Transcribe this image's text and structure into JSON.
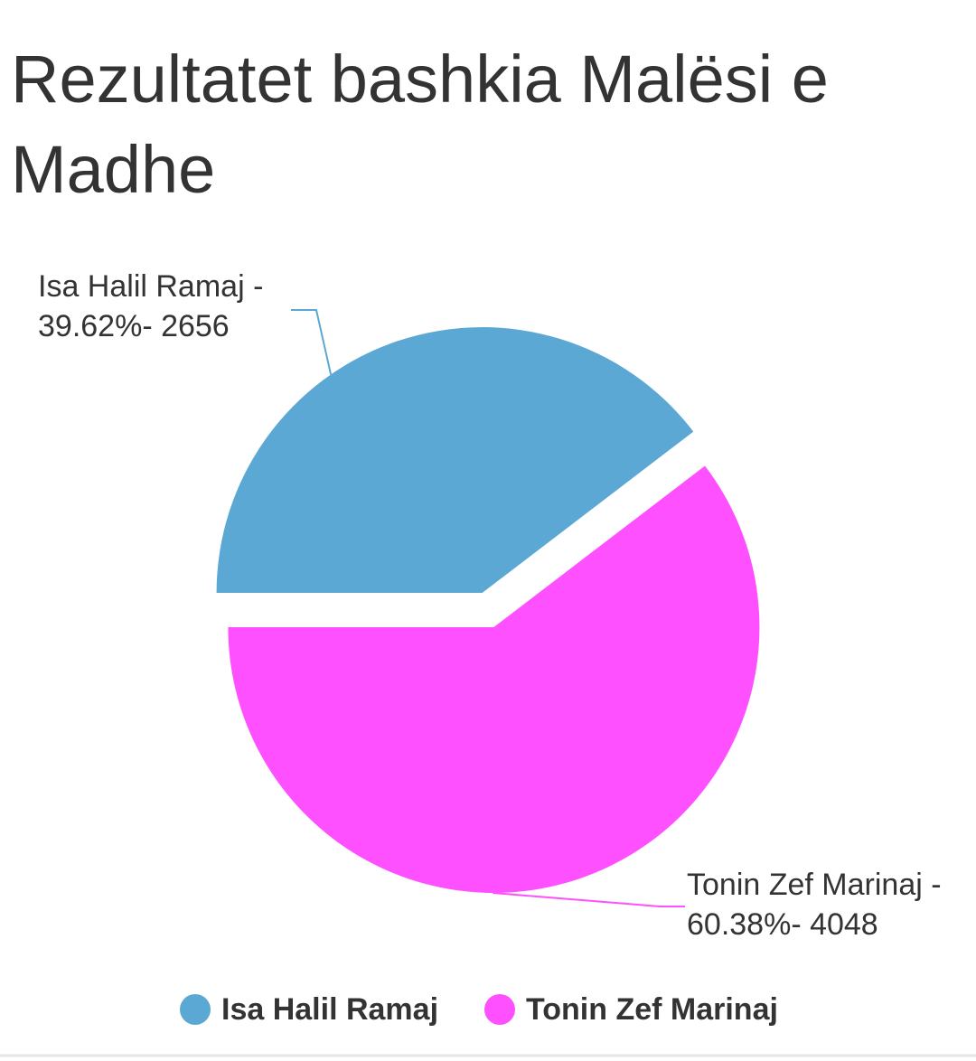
{
  "chart_data": {
    "type": "pie",
    "title": "Rezultatet bashkia Malësi e Madhe",
    "categories": [
      "Isa Halil Ramaj",
      "Tonin Zef Marinaj"
    ],
    "values": [
      2656,
      4048
    ],
    "value_labels": [
      "Isa Halil Ramaj -\n39.62%- 2656",
      "Tonin Zef Marinaj -\n60.38%- 4048"
    ],
    "colors": [
      "#5aa8d3",
      "#ff50ff"
    ],
    "legend": "bottom"
  }
}
